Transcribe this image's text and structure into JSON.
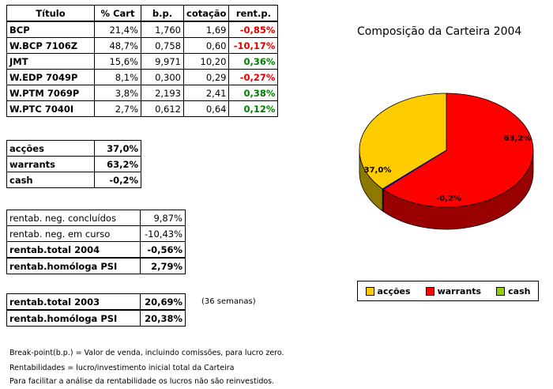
{
  "main_table": {
    "headers": [
      "Título",
      "% Cart",
      "b.p.",
      "cotação",
      "rent.p."
    ],
    "rows": [
      {
        "titulo": "BCP",
        "cart": "21,4%",
        "bp": "1,760",
        "cot": "1,69",
        "rent": "-0,85%",
        "sign": "neg"
      },
      {
        "titulo": "W.BCP 7106Z",
        "cart": "48,7%",
        "bp": "0,758",
        "cot": "0,60",
        "rent": "-10,17%",
        "sign": "neg"
      },
      {
        "titulo": "JMT",
        "cart": "15,6%",
        "bp": "9,971",
        "cot": "10,20",
        "rent": "0,36%",
        "sign": "pos"
      },
      {
        "titulo": "W.EDP 7049P",
        "cart": "8,1%",
        "bp": "0,300",
        "cot": "0,29",
        "rent": "-0,27%",
        "sign": "neg"
      },
      {
        "titulo": "W.PTM 7069P",
        "cart": "3,8%",
        "bp": "2,193",
        "cot": "2,41",
        "rent": "0,38%",
        "sign": "pos"
      },
      {
        "titulo": "W.PTC 7040I",
        "cart": "2,7%",
        "bp": "0,612",
        "cot": "0,64",
        "rent": "0,12%",
        "sign": "pos"
      }
    ]
  },
  "allocation": [
    {
      "label": "acções",
      "value": "37,0%"
    },
    {
      "label": "warrants",
      "value": "63,2%"
    },
    {
      "label": "cash",
      "value": "-0,2%"
    }
  ],
  "returns": [
    {
      "label": "rentab. neg. concluídos",
      "value": "9,87%",
      "bold": false
    },
    {
      "label": "rentab. neg. em curso",
      "value": "-10,43%",
      "bold": false
    },
    {
      "label": "rentab.total 2004",
      "value": "-0,56%",
      "bold": true
    },
    {
      "label": "rentab.homóloga PSI",
      "value": "2,79%",
      "bold": true
    }
  ],
  "returns_2003": [
    {
      "label": "rentab.total 2003",
      "value": "20,69%"
    },
    {
      "label": "rentab.homóloga PSI",
      "value": "20,38%"
    }
  ],
  "weeks_note": "(36 semanas)",
  "footnotes": [
    "Break-point(b.p.) = Valor de venda, incluindo comissões, para lucro zero.",
    "Rentabilidades = lucro/investimento inicial total da Carteira",
    "Para facilitar a análise da rentabilidade os lucros não são reinvestidos."
  ],
  "chart_data": {
    "type": "pie",
    "title": "Composição da Carteira 2004",
    "categories": [
      "acções",
      "warrants",
      "cash"
    ],
    "values": [
      37.0,
      63.2,
      -0.2
    ],
    "labels": [
      "37,0%",
      "63,2%",
      "-0,2%"
    ],
    "colors": [
      "#ffcc00",
      "#ff0000",
      "#99cc00"
    ],
    "legend_position": "bottom"
  }
}
